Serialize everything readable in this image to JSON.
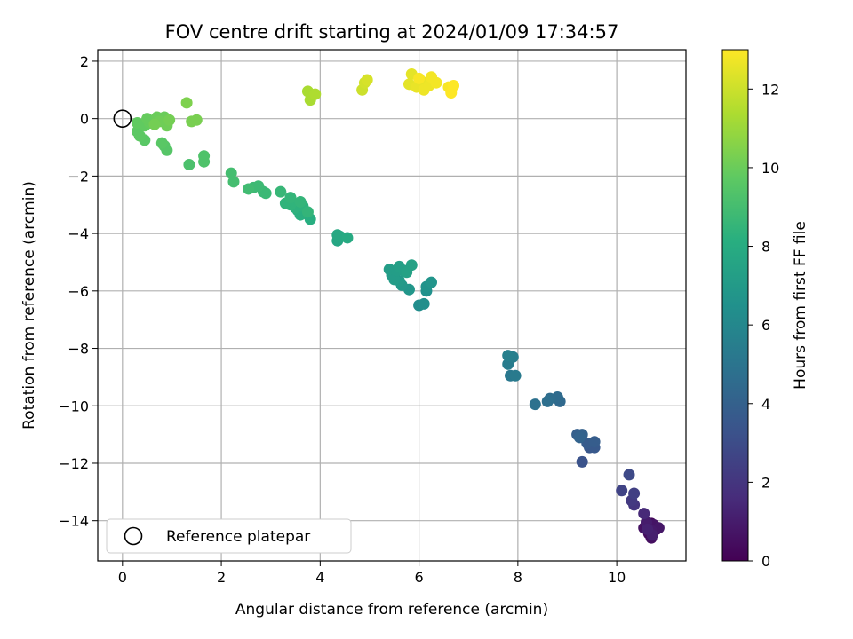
{
  "chart_data": {
    "type": "scatter",
    "title": "FOV centre drift starting at 2024/01/09 17:34:57",
    "xlabel": "Angular distance from reference (arcmin)",
    "ylabel": "Rotation from reference (arcmin)",
    "xlim": [
      -0.5,
      11.4
    ],
    "ylim": [
      -15.4,
      2.4
    ],
    "xticks": [
      0,
      2,
      4,
      6,
      8,
      10
    ],
    "yticks": [
      2,
      0,
      -2,
      -4,
      -6,
      -8,
      -10,
      -12,
      -14
    ],
    "grid": true,
    "legend": {
      "position": "lower-left",
      "entries": [
        "Reference platepar"
      ]
    },
    "reference_point": {
      "x": 0,
      "y": 0,
      "label": "Reference platepar",
      "marker": "open-circle"
    },
    "colorbar": {
      "label": "Hours from first FF file",
      "min": 0,
      "max": 13,
      "ticks": [
        0,
        2,
        4,
        6,
        8,
        10,
        12
      ],
      "colormap": "viridis"
    },
    "series": [
      {
        "points": [
          {
            "x": 10.6,
            "y": -14.2,
            "c": 0.1
          },
          {
            "x": 10.7,
            "y": -14.1,
            "c": 0.2
          },
          {
            "x": 10.8,
            "y": -14.3,
            "c": 0.3
          },
          {
            "x": 10.65,
            "y": -14.45,
            "c": 0.4
          },
          {
            "x": 10.7,
            "y": -14.6,
            "c": 0.5
          },
          {
            "x": 10.55,
            "y": -14.25,
            "c": 0.6
          },
          {
            "x": 10.75,
            "y": -14.15,
            "c": 0.7
          },
          {
            "x": 10.85,
            "y": -14.25,
            "c": 0.8
          },
          {
            "x": 10.7,
            "y": -14.35,
            "c": 0.9
          },
          {
            "x": 10.6,
            "y": -14.05,
            "c": 1.0
          },
          {
            "x": 10.72,
            "y": -14.5,
            "c": 1.1
          },
          {
            "x": 10.62,
            "y": -14.3,
            "c": 1.2
          },
          {
            "x": 10.55,
            "y": -13.75,
            "c": 1.5
          },
          {
            "x": 10.35,
            "y": -13.45,
            "c": 2.0
          },
          {
            "x": 10.3,
            "y": -13.3,
            "c": 2.2
          },
          {
            "x": 10.35,
            "y": -13.05,
            "c": 2.4
          },
          {
            "x": 10.1,
            "y": -12.95,
            "c": 2.6
          },
          {
            "x": 10.25,
            "y": -12.4,
            "c": 2.9
          },
          {
            "x": 9.3,
            "y": -11.95,
            "c": 3.3
          },
          {
            "x": 9.45,
            "y": -11.45,
            "c": 3.5
          },
          {
            "x": 9.55,
            "y": -11.45,
            "c": 3.6
          },
          {
            "x": 9.4,
            "y": -11.3,
            "c": 3.7
          },
          {
            "x": 9.55,
            "y": -11.25,
            "c": 3.8
          },
          {
            "x": 9.2,
            "y": -11.0,
            "c": 3.9
          },
          {
            "x": 9.3,
            "y": -11.0,
            "c": 4.0
          },
          {
            "x": 9.25,
            "y": -11.1,
            "c": 4.1
          },
          {
            "x": 8.85,
            "y": -9.85,
            "c": 4.4
          },
          {
            "x": 8.8,
            "y": -9.7,
            "c": 4.5
          },
          {
            "x": 8.65,
            "y": -9.75,
            "c": 4.6
          },
          {
            "x": 8.6,
            "y": -9.85,
            "c": 4.7
          },
          {
            "x": 8.35,
            "y": -9.95,
            "c": 4.8
          },
          {
            "x": 7.85,
            "y": -8.95,
            "c": 5.2
          },
          {
            "x": 7.95,
            "y": -8.95,
            "c": 5.3
          },
          {
            "x": 7.8,
            "y": -8.55,
            "c": 5.4
          },
          {
            "x": 7.9,
            "y": -8.3,
            "c": 5.5
          },
          {
            "x": 7.8,
            "y": -8.25,
            "c": 5.6
          },
          {
            "x": 6.0,
            "y": -6.5,
            "c": 6.3
          },
          {
            "x": 6.1,
            "y": -6.45,
            "c": 6.4
          },
          {
            "x": 6.15,
            "y": -6.0,
            "c": 6.5
          },
          {
            "x": 6.15,
            "y": -5.85,
            "c": 6.6
          },
          {
            "x": 6.25,
            "y": -5.7,
            "c": 6.7
          },
          {
            "x": 5.8,
            "y": -5.95,
            "c": 6.8
          },
          {
            "x": 5.65,
            "y": -5.8,
            "c": 6.9
          },
          {
            "x": 5.6,
            "y": -5.65,
            "c": 7.0
          },
          {
            "x": 5.5,
            "y": -5.6,
            "c": 7.1
          },
          {
            "x": 5.45,
            "y": -5.45,
            "c": 7.1
          },
          {
            "x": 5.4,
            "y": -5.25,
            "c": 7.2
          },
          {
            "x": 5.55,
            "y": -5.3,
            "c": 7.2
          },
          {
            "x": 5.6,
            "y": -5.15,
            "c": 7.3
          },
          {
            "x": 5.7,
            "y": -5.3,
            "c": 7.3
          },
          {
            "x": 5.85,
            "y": -5.1,
            "c": 7.4
          },
          {
            "x": 5.75,
            "y": -5.35,
            "c": 7.4
          },
          {
            "x": 4.35,
            "y": -4.25,
            "c": 7.7
          },
          {
            "x": 4.4,
            "y": -4.1,
            "c": 7.8
          },
          {
            "x": 4.35,
            "y": -4.05,
            "c": 7.8
          },
          {
            "x": 4.55,
            "y": -4.15,
            "c": 7.9
          },
          {
            "x": 3.8,
            "y": -3.5,
            "c": 8.1
          },
          {
            "x": 3.7,
            "y": -3.3,
            "c": 8.1
          },
          {
            "x": 3.6,
            "y": -3.35,
            "c": 8.2
          },
          {
            "x": 3.55,
            "y": -3.2,
            "c": 8.2
          },
          {
            "x": 3.65,
            "y": -3.05,
            "c": 8.3
          },
          {
            "x": 3.5,
            "y": -3.1,
            "c": 8.3
          },
          {
            "x": 3.4,
            "y": -3.0,
            "c": 8.4
          },
          {
            "x": 3.3,
            "y": -2.95,
            "c": 8.4
          },
          {
            "x": 3.4,
            "y": -2.75,
            "c": 8.5
          },
          {
            "x": 3.6,
            "y": -2.9,
            "c": 8.5
          },
          {
            "x": 3.75,
            "y": -3.25,
            "c": 8.5
          },
          {
            "x": 3.2,
            "y": -2.55,
            "c": 8.6
          },
          {
            "x": 2.9,
            "y": -2.6,
            "c": 8.7
          },
          {
            "x": 2.85,
            "y": -2.55,
            "c": 8.7
          },
          {
            "x": 2.75,
            "y": -2.35,
            "c": 8.8
          },
          {
            "x": 2.65,
            "y": -2.4,
            "c": 8.8
          },
          {
            "x": 2.55,
            "y": -2.45,
            "c": 8.9
          },
          {
            "x": 2.25,
            "y": -2.2,
            "c": 9.0
          },
          {
            "x": 2.2,
            "y": -1.9,
            "c": 9.0
          },
          {
            "x": 1.35,
            "y": -1.6,
            "c": 9.2
          },
          {
            "x": 1.65,
            "y": -1.5,
            "c": 9.3
          },
          {
            "x": 1.65,
            "y": -1.3,
            "c": 9.3
          },
          {
            "x": 0.9,
            "y": -1.1,
            "c": 9.5
          },
          {
            "x": 0.85,
            "y": -0.95,
            "c": 9.5
          },
          {
            "x": 0.8,
            "y": -0.85,
            "c": 9.6
          },
          {
            "x": 0.45,
            "y": -0.75,
            "c": 9.6
          },
          {
            "x": 0.35,
            "y": -0.6,
            "c": 9.7
          },
          {
            "x": 0.3,
            "y": -0.45,
            "c": 9.7
          },
          {
            "x": 0.3,
            "y": -0.15,
            "c": 9.8
          },
          {
            "x": 0.45,
            "y": -0.25,
            "c": 9.8
          },
          {
            "x": 0.55,
            "y": -0.15,
            "c": 9.9
          },
          {
            "x": 0.5,
            "y": -0.0,
            "c": 9.9
          },
          {
            "x": 0.7,
            "y": 0.05,
            "c": 10.0
          },
          {
            "x": 0.85,
            "y": 0.05,
            "c": 10.0
          },
          {
            "x": 0.9,
            "y": -0.25,
            "c": 10.1
          },
          {
            "x": 0.75,
            "y": -0.1,
            "c": 10.1
          },
          {
            "x": 0.65,
            "y": -0.2,
            "c": 10.2
          },
          {
            "x": 0.95,
            "y": -0.05,
            "c": 10.2
          },
          {
            "x": 1.4,
            "y": -0.1,
            "c": 10.3
          },
          {
            "x": 1.5,
            "y": -0.05,
            "c": 10.3
          },
          {
            "x": 1.3,
            "y": 0.55,
            "c": 10.4
          },
          {
            "x": 3.8,
            "y": 0.65,
            "c": 11.3
          },
          {
            "x": 3.75,
            "y": 0.95,
            "c": 11.3
          },
          {
            "x": 3.9,
            "y": 0.85,
            "c": 11.4
          },
          {
            "x": 4.85,
            "y": 1.0,
            "c": 12.0
          },
          {
            "x": 4.9,
            "y": 1.25,
            "c": 12.1
          },
          {
            "x": 4.95,
            "y": 1.35,
            "c": 12.2
          },
          {
            "x": 5.85,
            "y": 1.55,
            "c": 12.5
          },
          {
            "x": 5.8,
            "y": 1.2,
            "c": 12.5
          },
          {
            "x": 5.95,
            "y": 1.1,
            "c": 12.6
          },
          {
            "x": 6.05,
            "y": 1.3,
            "c": 12.6
          },
          {
            "x": 6.1,
            "y": 1.0,
            "c": 12.7
          },
          {
            "x": 6.2,
            "y": 1.15,
            "c": 12.7
          },
          {
            "x": 6.25,
            "y": 1.45,
            "c": 12.8
          },
          {
            "x": 6.35,
            "y": 1.25,
            "c": 12.8
          },
          {
            "x": 6.0,
            "y": 1.4,
            "c": 12.9
          },
          {
            "x": 6.6,
            "y": 1.1,
            "c": 12.9
          },
          {
            "x": 6.65,
            "y": 0.9,
            "c": 13.0
          },
          {
            "x": 6.7,
            "y": 1.15,
            "c": 13.0
          }
        ]
      }
    ]
  }
}
